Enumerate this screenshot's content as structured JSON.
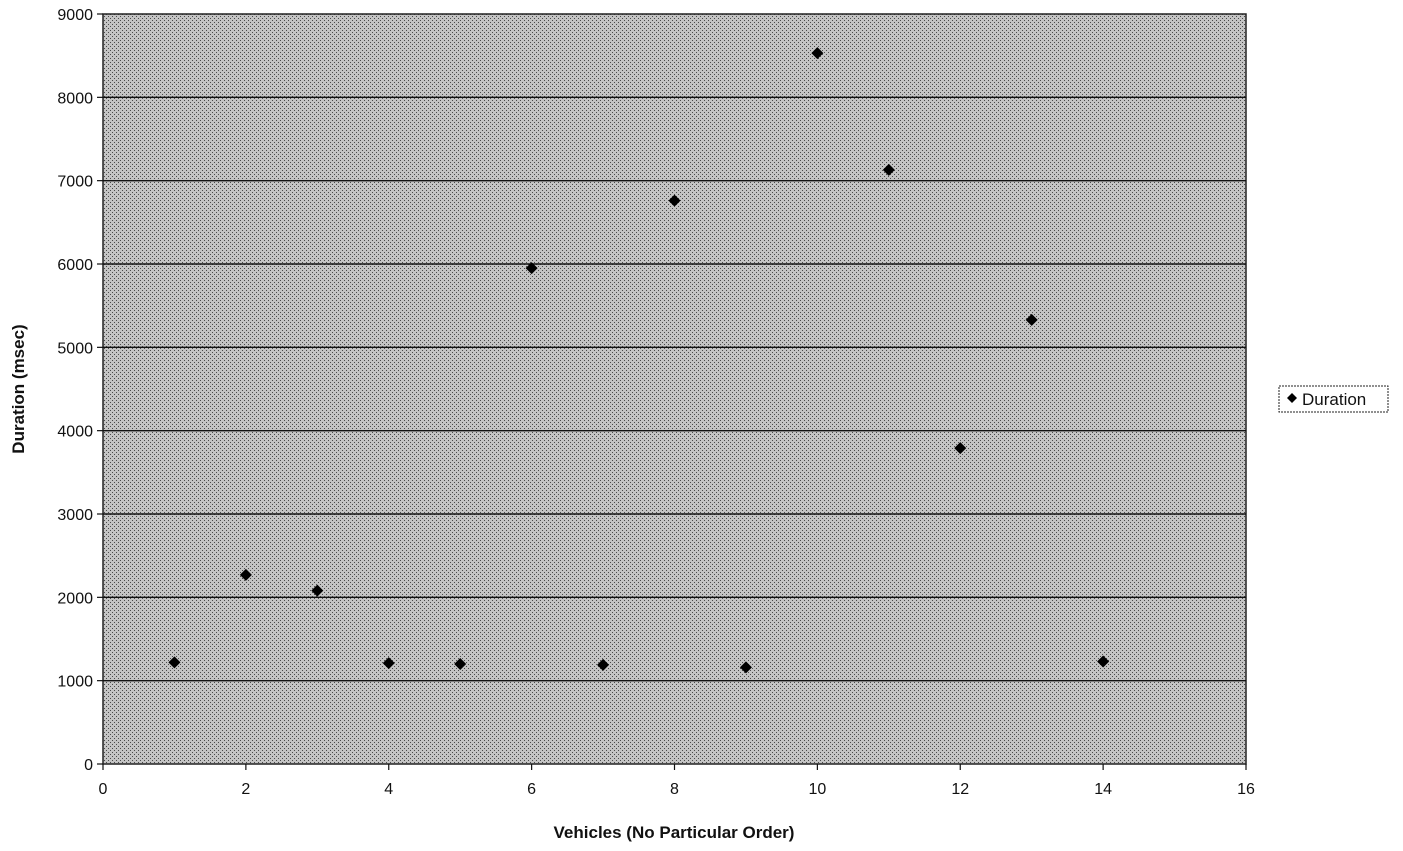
{
  "chart_data": {
    "type": "scatter",
    "title": "",
    "xlabel": "Vehicles (No Particular Order)",
    "ylabel": "Duration (msec)",
    "xlim": [
      0,
      16
    ],
    "ylim": [
      0,
      9000
    ],
    "x_ticks": [
      "0",
      "2",
      "4",
      "6",
      "8",
      "10",
      "12",
      "14",
      "16"
    ],
    "y_ticks": [
      "0",
      "1000",
      "2000",
      "3000",
      "4000",
      "5000",
      "6000",
      "7000",
      "8000",
      "9000"
    ],
    "grid": "horizontal",
    "legend_position": "right",
    "plot_background": "#b8b8b8",
    "marker_color": "#000000",
    "marker": "diamond",
    "series": [
      {
        "name": "Duration",
        "x": [
          1,
          2,
          3,
          4,
          5,
          6,
          7,
          8,
          9,
          10,
          11,
          12,
          13,
          14
        ],
        "y": [
          1220,
          2270,
          2080,
          1210,
          1200,
          5950,
          1190,
          6760,
          1160,
          8530,
          7130,
          3790,
          5330,
          1230
        ]
      }
    ]
  }
}
